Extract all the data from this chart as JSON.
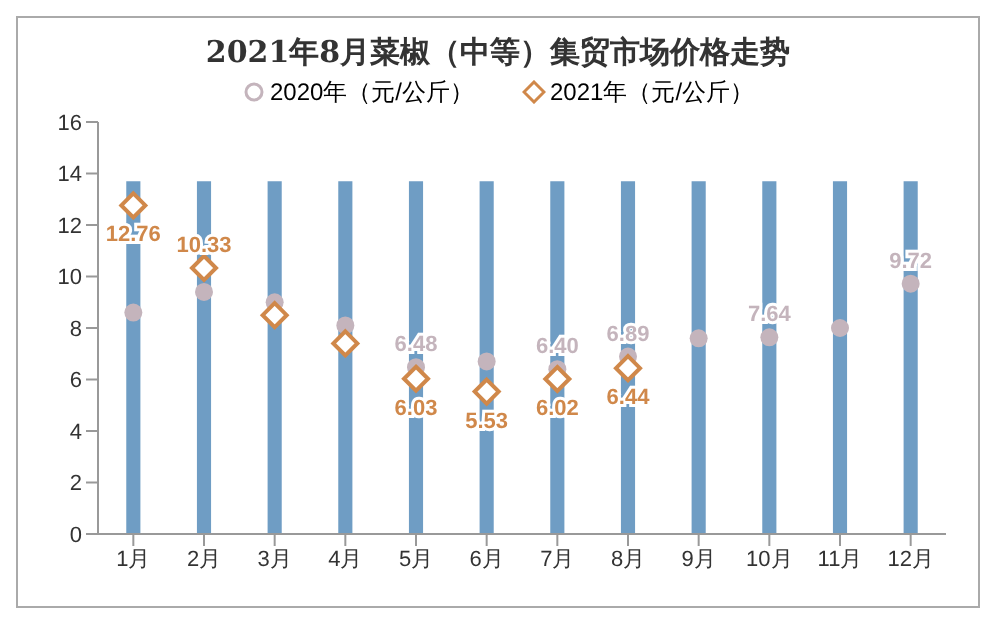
{
  "chart_data": {
    "type": "scatter",
    "title": "2021年8月菜椒（中等）集贸市场价格走势",
    "categories": [
      "1月",
      "2月",
      "3月",
      "4月",
      "5月",
      "6月",
      "7月",
      "8月",
      "9月",
      "10月",
      "11月",
      "12月"
    ],
    "series": [
      {
        "type": "bar",
        "color": "#6f9dc4",
        "values": [
          13.7,
          13.7,
          13.7,
          13.7,
          13.7,
          13.7,
          13.7,
          13.7,
          13.7,
          13.7,
          13.7,
          13.7
        ]
      },
      {
        "name": "2020年（元/公斤）",
        "marker": "circle",
        "color": "#c4b4bc",
        "values": [
          8.6,
          9.4,
          9.0,
          8.1,
          6.48,
          6.7,
          6.4,
          6.89,
          7.6,
          7.64,
          8.0,
          9.72
        ],
        "value_labels": [
          null,
          null,
          null,
          null,
          "6.48",
          null,
          "6.40",
          "6.89",
          null,
          "7.64",
          null,
          "9.72"
        ]
      },
      {
        "name": "2021年（元/公斤）",
        "marker": "diamond",
        "color": "#d0884a",
        "values": [
          12.76,
          10.33,
          8.5,
          7.4,
          6.03,
          5.53,
          6.02,
          6.44,
          null,
          null,
          null,
          null
        ],
        "value_labels": [
          "12.76",
          "10.33",
          null,
          null,
          "6.03",
          "5.53",
          "6.02",
          "6.44",
          null,
          null,
          null,
          null
        ]
      }
    ],
    "ylim": [
      0,
      16
    ],
    "yticks": [
      0,
      2,
      4,
      6,
      8,
      10,
      12,
      14,
      16
    ],
    "legend": "top"
  }
}
